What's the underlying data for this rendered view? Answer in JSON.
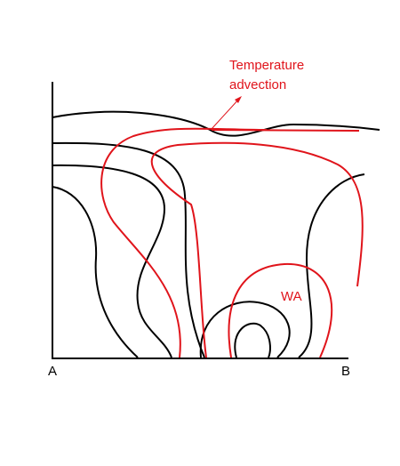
{
  "annotation": {
    "lines": [
      "Temperature",
      "advection"
    ]
  },
  "region_label": "WA",
  "axis": {
    "start": "A",
    "end": "B"
  }
}
